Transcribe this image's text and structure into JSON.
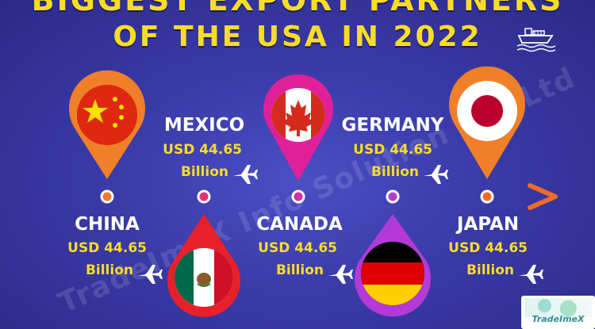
{
  "title": {
    "line1": "BIGGEST EXPORT PARTNERS",
    "line2": "OF THE USA IN 2022"
  },
  "watermark": "TradeImeX Info Solution Pvt Ltd",
  "icons": {
    "ship": "ship-icon",
    "plane": "airplane-icon"
  },
  "colors": {
    "title": "#f8dc2a",
    "value": "#f8dc2a",
    "name": "#ffffff"
  },
  "countries": [
    {
      "name": "CHINA",
      "value_line1": "USD 44.65",
      "value_line2": "Billion",
      "flag": "china-flag"
    },
    {
      "name": "MEXICO",
      "value_line1": "USD 44.65",
      "value_line2": "Billion",
      "flag": "mexico-flag"
    },
    {
      "name": "CANADA",
      "value_line1": "USD 44.65",
      "value_line2": "Billion",
      "flag": "canada-flag"
    },
    {
      "name": "GERMANY",
      "value_line1": "USD 44.65",
      "value_line2": "Billion",
      "flag": "germany-flag"
    },
    {
      "name": "JAPAN",
      "value_line1": "USD 44.65",
      "value_line2": "Billion",
      "flag": "japan-flag"
    }
  ],
  "logo": {
    "text": "TradeImeX"
  }
}
